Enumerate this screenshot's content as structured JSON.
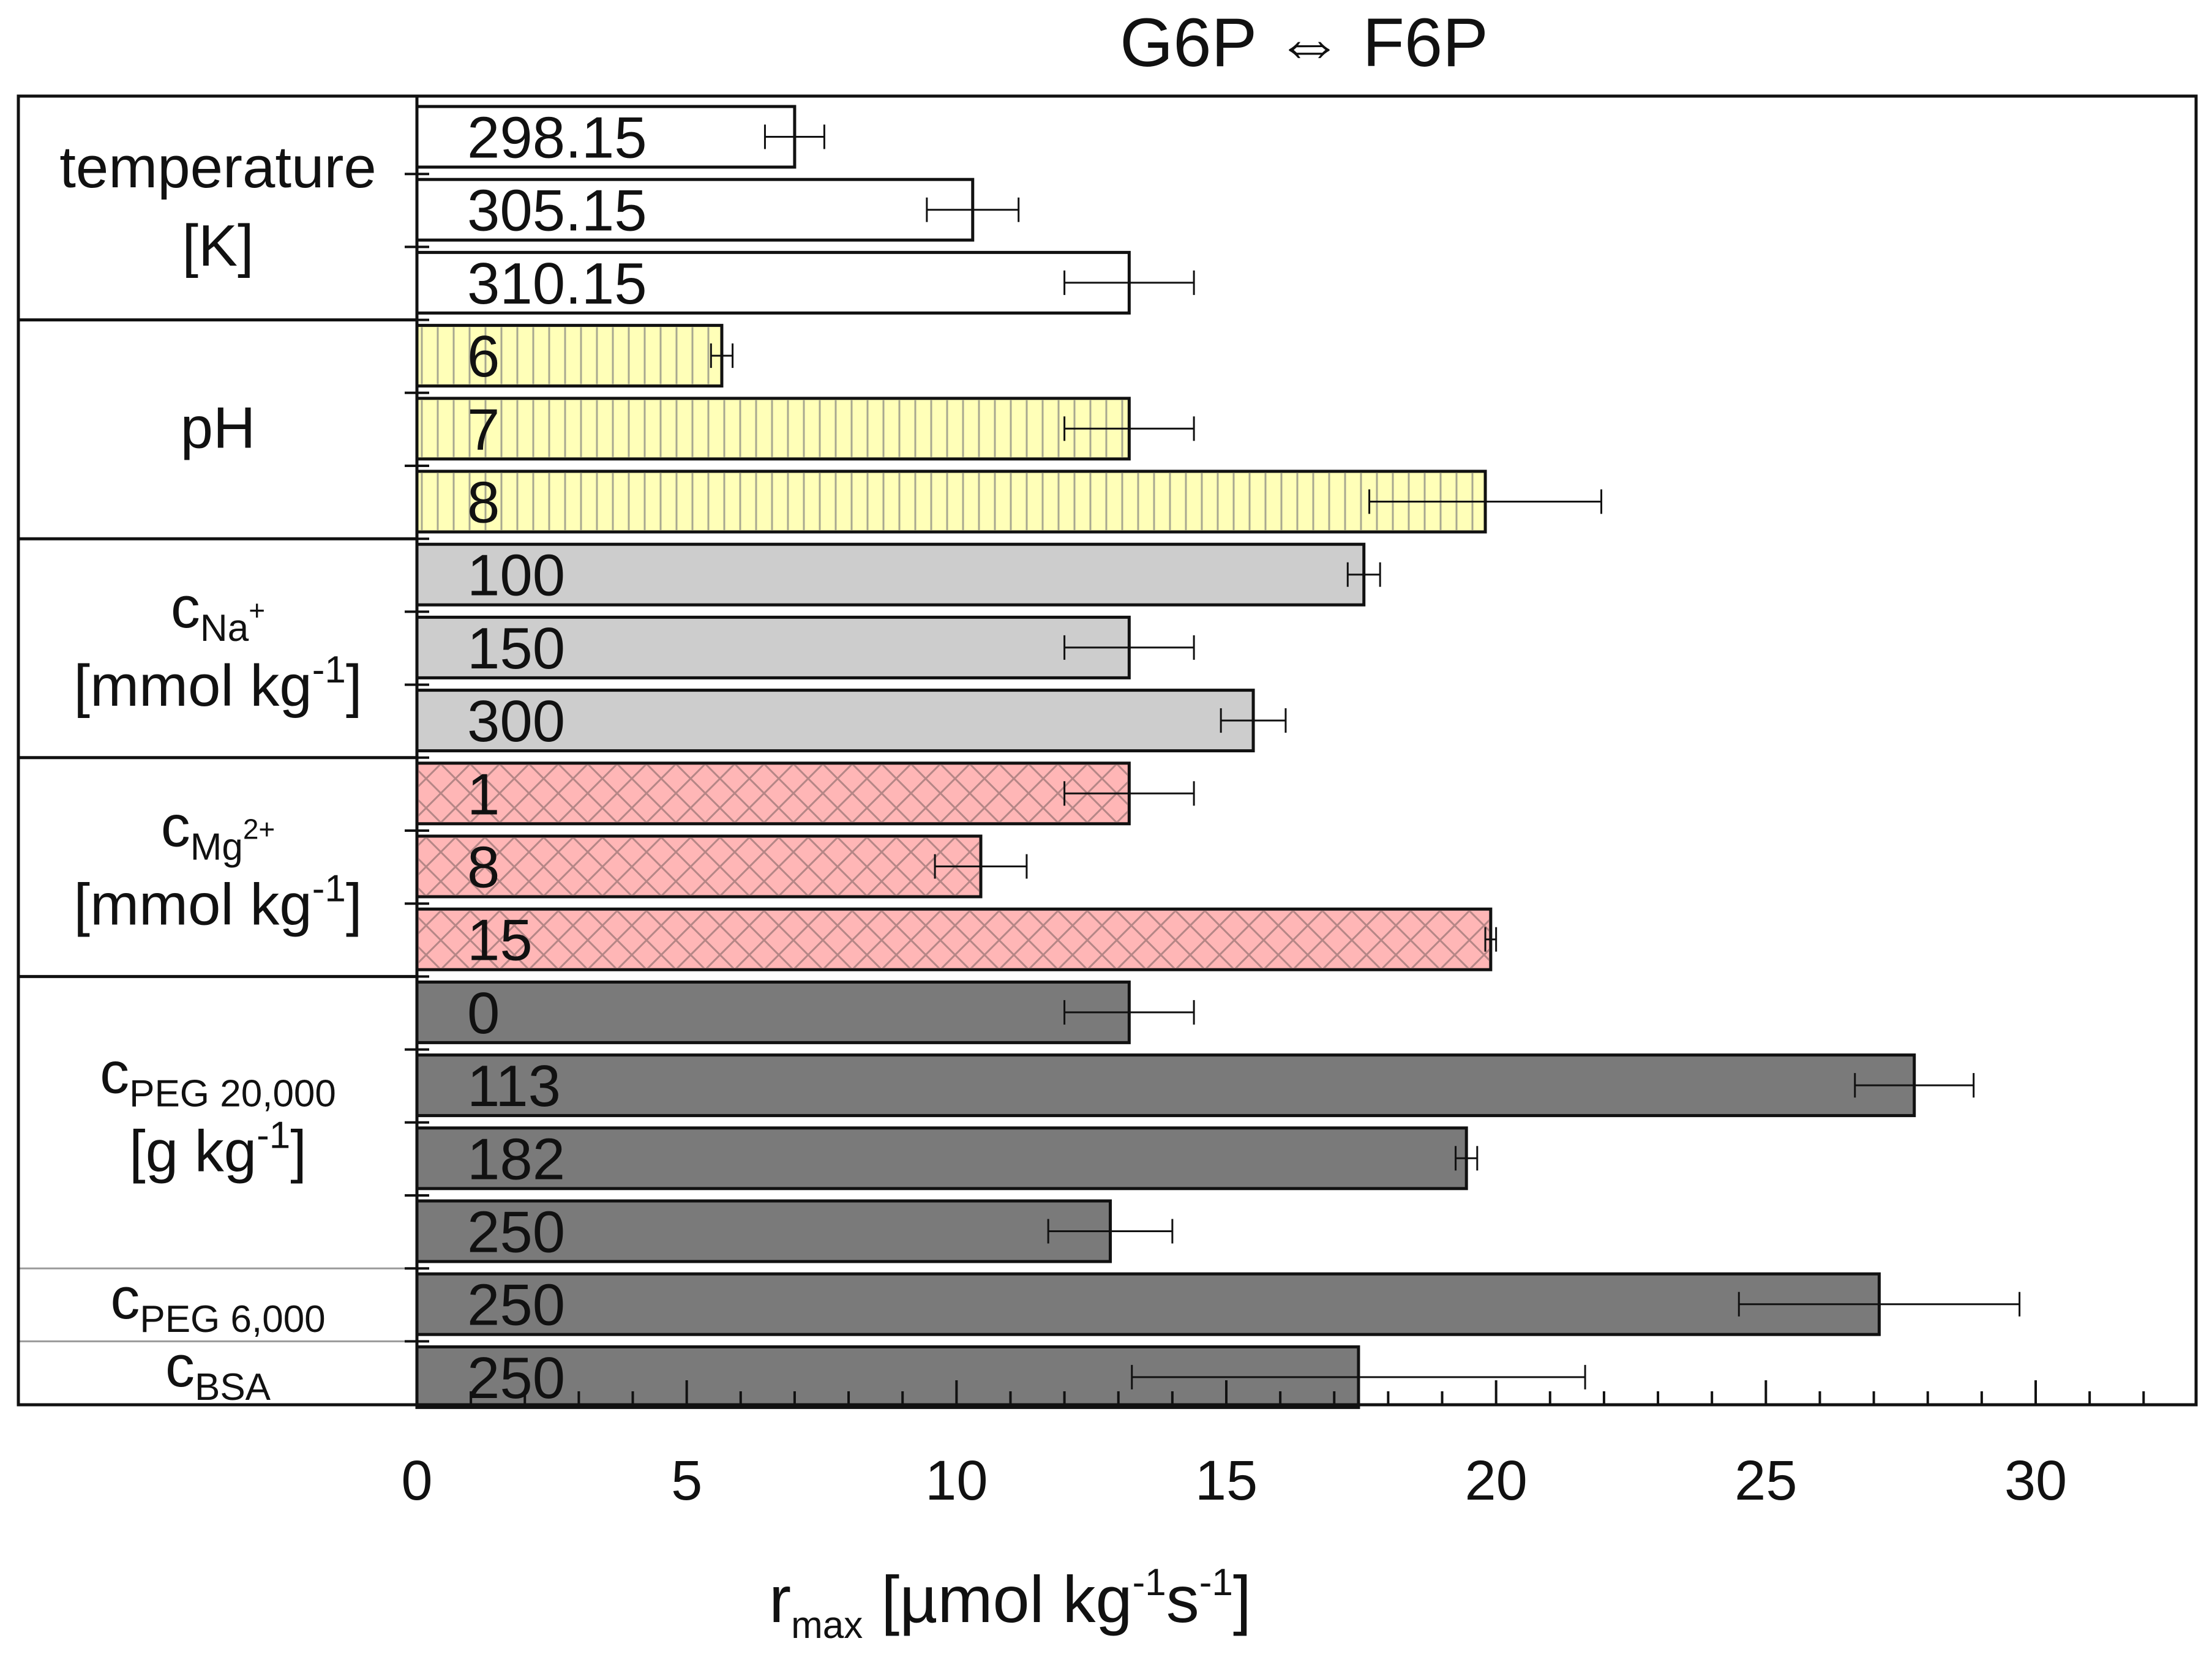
{
  "chart_data": {
    "type": "bar",
    "orientation": "horizontal",
    "title": "G6P ⇔ F6P",
    "xlabel": {
      "base": "r",
      "sub": "max",
      "unit_prefix": " [µmol kg",
      "exp1": "-1",
      "mid": "s",
      "exp2": "-1",
      "end": "]"
    },
    "xlim": [
      0,
      33
    ],
    "xticks": [
      0,
      5,
      10,
      15,
      20,
      25,
      30
    ],
    "grid": false,
    "legend": "none",
    "groups": [
      {
        "key": "temperature",
        "label_lines": [
          {
            "main": "temperature"
          },
          {
            "main": "[K]"
          }
        ],
        "color": "#ffffff",
        "pattern": "none"
      },
      {
        "key": "ph",
        "label_lines": [
          {
            "main": "pH"
          }
        ],
        "color": "#ffffb8",
        "pattern": "vertical-lines"
      },
      {
        "key": "na",
        "label_lines": [
          {
            "main": "c",
            "sub": "Na",
            "sub_sup": "+"
          },
          {
            "main": "[mmol kg",
            "sup": "-1",
            "after": "]"
          }
        ],
        "color": "#cdcdcd",
        "pattern": "none"
      },
      {
        "key": "mg",
        "label_lines": [
          {
            "main": "c",
            "sub": "Mg",
            "sub_sup": "2+"
          },
          {
            "main": "[mmol kg",
            "sup": "-1",
            "after": "]"
          }
        ],
        "color": "#ffb6b6",
        "pattern": "crosshatch"
      },
      {
        "key": "peg20",
        "label_lines": [
          {
            "main": "c",
            "sub": "PEG 20,000"
          },
          {
            "main": "[g kg",
            "sup": "-1",
            "after": "]"
          }
        ],
        "color": "#7a7a7a",
        "pattern": "none"
      },
      {
        "key": "peg6",
        "label_lines": [
          {
            "main": "c",
            "sub": "PEG 6,000"
          }
        ],
        "color": "#7a7a7a",
        "pattern": "none"
      },
      {
        "key": "bsa",
        "label_lines": [
          {
            "main": "c",
            "sub": "BSA"
          }
        ],
        "color": "#7a7a7a",
        "pattern": "none"
      }
    ],
    "bars": [
      {
        "group": "temperature",
        "label": "298.15",
        "value": 7.0,
        "err": 0.55
      },
      {
        "group": "temperature",
        "label": "305.15",
        "value": 10.3,
        "err": 0.85
      },
      {
        "group": "temperature",
        "label": "310.15",
        "value": 13.2,
        "err": 1.2
      },
      {
        "group": "ph",
        "label": "6",
        "value": 5.65,
        "err": 0.2
      },
      {
        "group": "ph",
        "label": "7",
        "value": 13.2,
        "err": 1.2
      },
      {
        "group": "ph",
        "label": "8",
        "value": 19.8,
        "err": 2.15
      },
      {
        "group": "na",
        "label": "100",
        "value": 17.55,
        "err": 0.3
      },
      {
        "group": "na",
        "label": "150",
        "value": 13.2,
        "err": 1.2
      },
      {
        "group": "na",
        "label": "300",
        "value": 15.5,
        "err": 0.6
      },
      {
        "group": "mg",
        "label": "1",
        "value": 13.2,
        "err": 1.2
      },
      {
        "group": "mg",
        "label": "8",
        "value": 10.45,
        "err": 0.85
      },
      {
        "group": "mg",
        "label": "15",
        "value": 19.9,
        "err": 0.1
      },
      {
        "group": "peg20",
        "label": "0",
        "value": 13.2,
        "err": 1.2
      },
      {
        "group": "peg20",
        "label": "113",
        "value": 27.75,
        "err": 1.1
      },
      {
        "group": "peg20",
        "label": "182",
        "value": 19.45,
        "err": 0.2
      },
      {
        "group": "peg20",
        "label": "250",
        "value": 12.85,
        "err": 1.15
      },
      {
        "group": "peg6",
        "label": "250",
        "value": 27.1,
        "err": 2.6
      },
      {
        "group": "bsa",
        "label": "250",
        "value": 17.45,
        "err": 4.2
      }
    ]
  }
}
